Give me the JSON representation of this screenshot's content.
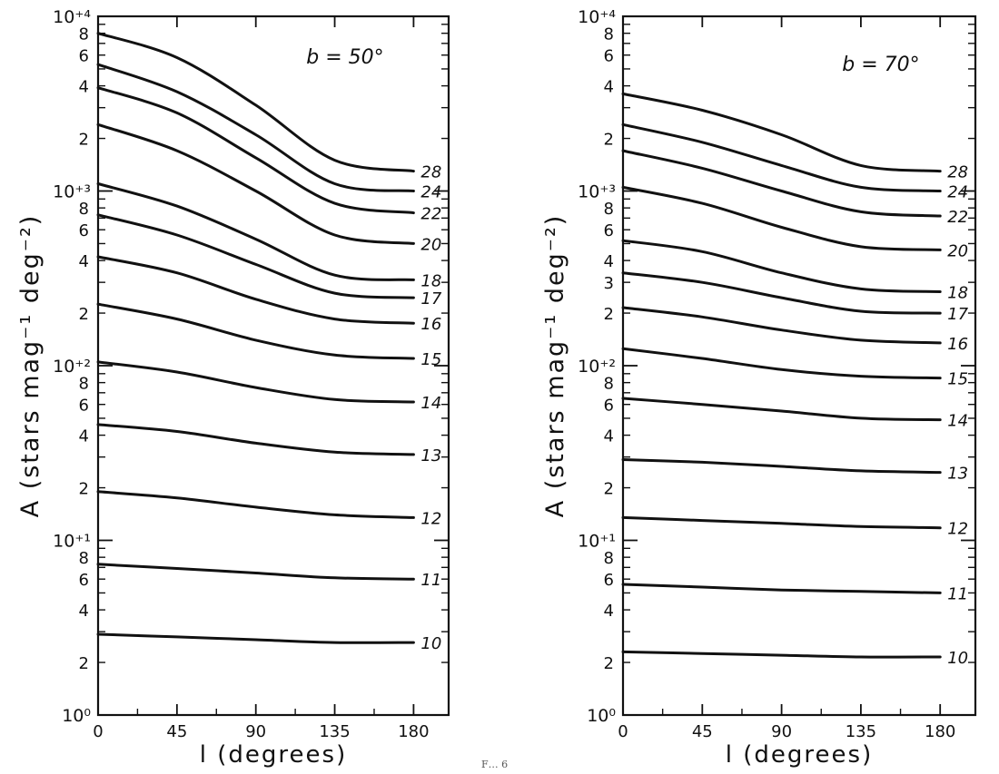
{
  "chart_data": [
    {
      "type": "line",
      "title": "b = 50°",
      "xlabel": "l (degrees)",
      "ylabel": "A (stars mag⁻¹ deg⁻²)",
      "xlim": [
        0,
        200
      ],
      "xticks": [
        0,
        45,
        90,
        135,
        180
      ],
      "ylim_log10": [
        0,
        4
      ],
      "yscale": "log",
      "decade_labels": [
        "10⁰",
        "10⁺¹",
        "10⁺²",
        "10⁺³",
        "10⁺⁴"
      ],
      "minor_labels": [
        "2",
        "4",
        "6",
        "8"
      ],
      "grid": false,
      "series": [
        {
          "name": "10",
          "x": [
            0,
            45,
            90,
            135,
            180
          ],
          "y": [
            2.9,
            2.8,
            2.7,
            2.6,
            2.6
          ]
        },
        {
          "name": "11",
          "x": [
            0,
            45,
            90,
            135,
            180
          ],
          "y": [
            7.3,
            6.9,
            6.5,
            6.1,
            6.0
          ]
        },
        {
          "name": "12",
          "x": [
            0,
            45,
            90,
            135,
            180
          ],
          "y": [
            19,
            17.5,
            15.5,
            14,
            13.5
          ]
        },
        {
          "name": "13",
          "x": [
            0,
            45,
            90,
            135,
            180
          ],
          "y": [
            46,
            42,
            36,
            32,
            31
          ]
        },
        {
          "name": "14",
          "x": [
            0,
            45,
            90,
            135,
            180
          ],
          "y": [
            105,
            92,
            75,
            64,
            62
          ]
        },
        {
          "name": "15",
          "x": [
            0,
            45,
            90,
            135,
            180
          ],
          "y": [
            225,
            185,
            140,
            115,
            110
          ]
        },
        {
          "name": "16",
          "x": [
            0,
            45,
            90,
            135,
            180
          ],
          "y": [
            420,
            340,
            240,
            185,
            175
          ]
        },
        {
          "name": "17",
          "x": [
            0,
            45,
            90,
            135,
            180
          ],
          "y": [
            730,
            560,
            380,
            260,
            245
          ]
        },
        {
          "name": "18",
          "x": [
            0,
            45,
            90,
            135,
            180
          ],
          "y": [
            1100,
            820,
            530,
            330,
            310
          ]
        },
        {
          "name": "20",
          "x": [
            0,
            45,
            90,
            135,
            180
          ],
          "y": [
            2400,
            1700,
            1000,
            560,
            500
          ]
        },
        {
          "name": "22",
          "x": [
            0,
            45,
            90,
            135,
            180
          ],
          "y": [
            3900,
            2800,
            1550,
            850,
            750
          ]
        },
        {
          "name": "24",
          "x": [
            0,
            45,
            90,
            135,
            180
          ],
          "y": [
            5300,
            3700,
            2100,
            1100,
            1000
          ]
        },
        {
          "name": "28",
          "x": [
            0,
            45,
            90,
            135,
            180
          ],
          "y": [
            8000,
            5800,
            3100,
            1500,
            1300
          ]
        }
      ]
    },
    {
      "type": "line",
      "title": "b = 70°",
      "xlabel": "l (degrees)",
      "ylabel": "A (stars mag⁻¹ deg⁻²)",
      "xlim": [
        0,
        200
      ],
      "xticks": [
        0,
        45,
        90,
        135,
        180
      ],
      "ylim_log10": [
        0,
        4
      ],
      "yscale": "log",
      "decade_labels": [
        "10⁰",
        "10⁺¹",
        "10⁺²",
        "10⁺³",
        "10⁺⁴"
      ],
      "minor_labels": [
        "2",
        "4",
        "6",
        "8"
      ],
      "extra_minor_labels": [
        "3"
      ],
      "grid": false,
      "series": [
        {
          "name": "10",
          "x": [
            0,
            45,
            90,
            135,
            180
          ],
          "y": [
            2.3,
            2.25,
            2.2,
            2.15,
            2.15
          ]
        },
        {
          "name": "11",
          "x": [
            0,
            45,
            90,
            135,
            180
          ],
          "y": [
            5.6,
            5.4,
            5.2,
            5.1,
            5.0
          ]
        },
        {
          "name": "12",
          "x": [
            0,
            45,
            90,
            135,
            180
          ],
          "y": [
            13.5,
            13,
            12.5,
            12,
            11.8
          ]
        },
        {
          "name": "13",
          "x": [
            0,
            45,
            90,
            135,
            180
          ],
          "y": [
            29,
            28,
            26.5,
            25,
            24.5
          ]
        },
        {
          "name": "14",
          "x": [
            0,
            45,
            90,
            135,
            180
          ],
          "y": [
            65,
            60,
            55,
            50,
            49
          ]
        },
        {
          "name": "15",
          "x": [
            0,
            45,
            90,
            135,
            180
          ],
          "y": [
            125,
            110,
            95,
            87,
            85
          ]
        },
        {
          "name": "16",
          "x": [
            0,
            45,
            90,
            135,
            180
          ],
          "y": [
            215,
            190,
            160,
            140,
            135
          ]
        },
        {
          "name": "17",
          "x": [
            0,
            45,
            90,
            135,
            180
          ],
          "y": [
            340,
            300,
            245,
            205,
            200
          ]
        },
        {
          "name": "18",
          "x": [
            0,
            45,
            90,
            135,
            180
          ],
          "y": [
            520,
            450,
            340,
            275,
            265
          ]
        },
        {
          "name": "20",
          "x": [
            0,
            45,
            90,
            135,
            180
          ],
          "y": [
            1050,
            850,
            620,
            480,
            460
          ]
        },
        {
          "name": "22",
          "x": [
            0,
            45,
            90,
            135,
            180
          ],
          "y": [
            1700,
            1350,
            1000,
            760,
            720
          ]
        },
        {
          "name": "24",
          "x": [
            0,
            45,
            90,
            135,
            180
          ],
          "y": [
            2400,
            1900,
            1400,
            1050,
            1000
          ]
        },
        {
          "name": "28",
          "x": [
            0,
            45,
            90,
            135,
            180
          ],
          "y": [
            3600,
            2900,
            2100,
            1400,
            1300
          ]
        }
      ]
    }
  ],
  "footer_text": "F… 6"
}
